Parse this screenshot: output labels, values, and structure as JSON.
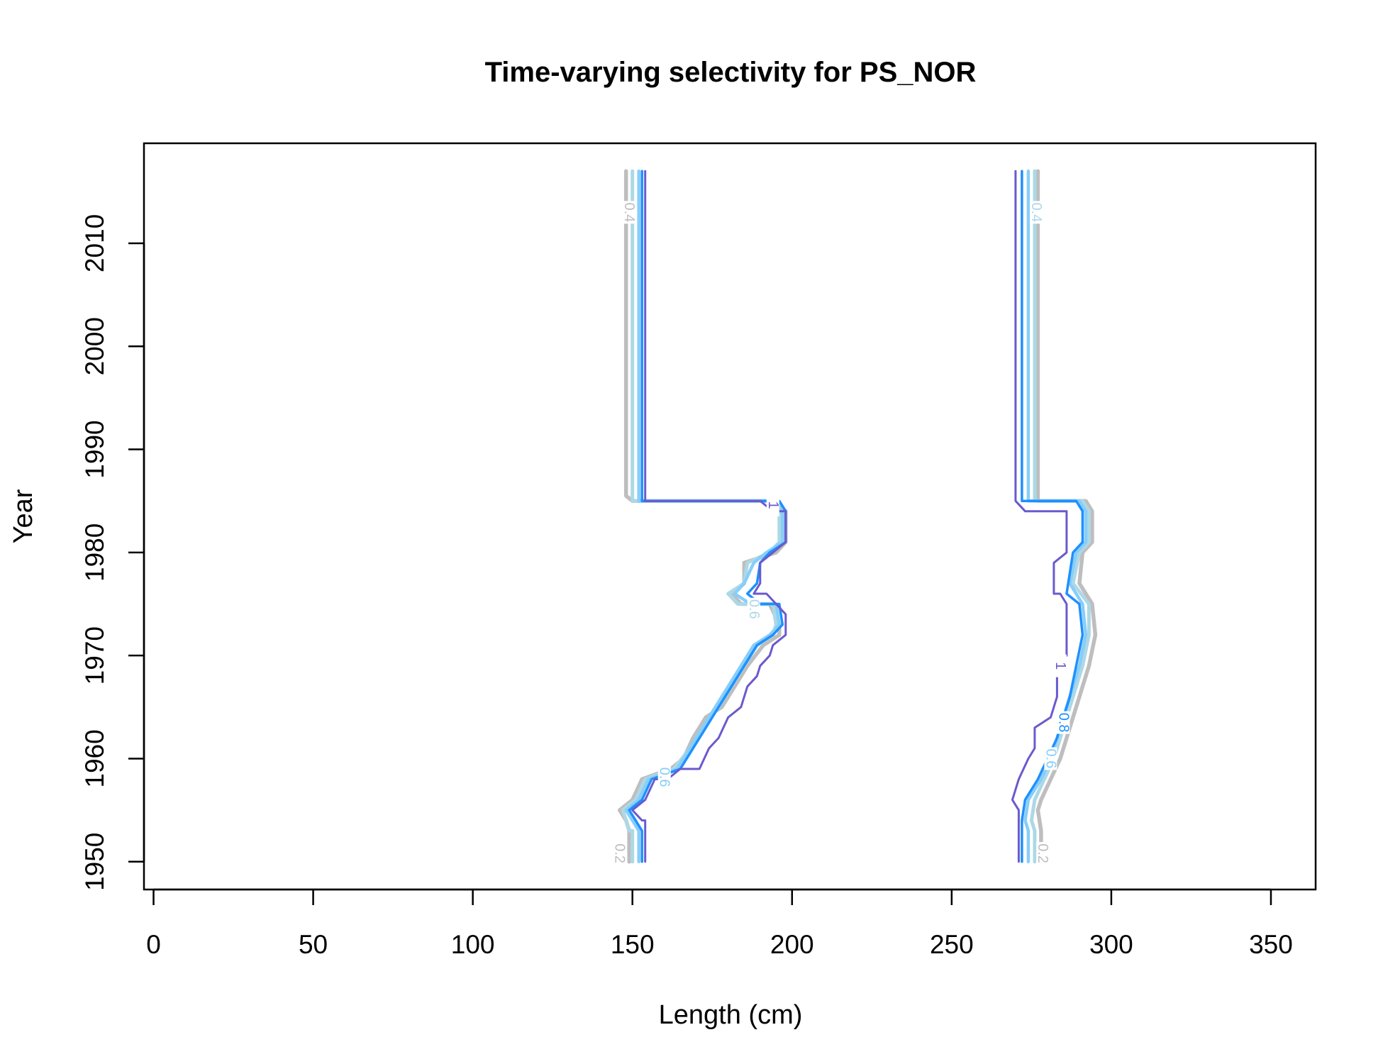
{
  "chart_data": {
    "type": "line",
    "title": "Time-varying selectivity for PS_NOR",
    "xlabel": "Length (cm)",
    "ylabel": "Year",
    "xlim": [
      -3,
      364
    ],
    "ylim": [
      1947.3,
      2019.7
    ],
    "x_ticks": [
      "0",
      "50",
      "100",
      "150",
      "200",
      "250",
      "300",
      "350"
    ],
    "x_tick_values": [
      0,
      50,
      100,
      150,
      200,
      250,
      300,
      350
    ],
    "y_ticks": [
      "1950",
      "1960",
      "1970",
      "1980",
      "1990",
      "2000",
      "2010"
    ],
    "y_tick_values": [
      1950,
      1960,
      1970,
      1980,
      1990,
      2000,
      2010
    ],
    "grid": false,
    "legend": "none",
    "series": [
      {
        "level": "0.2",
        "color": "#bebebe",
        "width": 5.5,
        "branches": [
          [
            [
              148,
              2017
            ],
            [
              148,
              1985.5
            ],
            [
              150,
              1985
            ],
            [
              194,
              1985
            ],
            [
              198,
              1984
            ],
            [
              198,
              1981
            ],
            [
              195,
              1980
            ],
            [
              185,
              1979
            ],
            [
              185,
              1977
            ],
            [
              181,
              1976
            ],
            [
              184,
              1975
            ],
            [
              193,
              1975
            ],
            [
              196,
              1973
            ],
            [
              196,
              1972
            ],
            [
              191,
              1971
            ],
            [
              186,
              1969
            ],
            [
              182,
              1967
            ],
            [
              178,
              1965
            ],
            [
              173,
              1964
            ],
            [
              169,
              1962
            ],
            [
              166,
              1960
            ],
            [
              162,
              1959
            ],
            [
              153,
              1958
            ],
            [
              150,
              1956
            ],
            [
              146,
              1955
            ],
            [
              148,
              1954
            ],
            [
              149,
              1953
            ],
            [
              149,
              1950
            ]
          ],
          [
            [
              277,
              2017
            ],
            [
              277,
              1985
            ],
            [
              292,
              1985
            ],
            [
              294,
              1984
            ],
            [
              294,
              1981
            ],
            [
              291,
              1980
            ],
            [
              290,
              1977
            ],
            [
              294,
              1975
            ],
            [
              295,
              1972
            ],
            [
              293,
              1969
            ],
            [
              290,
              1966
            ],
            [
              287,
              1963
            ],
            [
              284,
              1960
            ],
            [
              281,
              1958
            ],
            [
              278,
              1956
            ],
            [
              277,
              1955
            ],
            [
              278,
              1953
            ],
            [
              278,
              1950
            ]
          ]
        ],
        "labels": [
          {
            "text": "0.2",
            "x": 146,
            "y": 1950.8
          },
          {
            "text": "0.2",
            "x": 278.5,
            "y": 1950.8
          },
          {
            "text": "0.4",
            "x": 149,
            "y": 2013
          }
        ]
      },
      {
        "level": "0.4",
        "color": "#add8e6",
        "width": 5,
        "branches": [
          [
            [
              150,
              2017
            ],
            [
              150,
              1985
            ],
            [
              193,
              1985
            ],
            [
              196,
              1984
            ],
            [
              196,
              1981
            ],
            [
              193,
              1980
            ],
            [
              186,
              1979
            ],
            [
              185,
              1977
            ],
            [
              180,
              1976
            ],
            [
              183,
              1975
            ],
            [
              194,
              1975
            ],
            [
              195,
              1973
            ],
            [
              194,
              1972
            ],
            [
              189,
              1971
            ],
            [
              185,
              1969
            ],
            [
              181,
              1967
            ],
            [
              177,
              1965
            ],
            [
              172,
              1963
            ],
            [
              168,
              1961
            ],
            [
              163,
              1959
            ],
            [
              154,
              1958
            ],
            [
              151,
              1956
            ],
            [
              147,
              1955
            ],
            [
              149,
              1953
            ],
            [
              150,
              1953
            ],
            [
              150,
              1950
            ]
          ],
          [
            [
              276,
              2017
            ],
            [
              276,
              1985
            ],
            [
              291,
              1985
            ],
            [
              293,
              1984
            ],
            [
              293,
              1981
            ],
            [
              290,
              1980
            ],
            [
              288,
              1977
            ],
            [
              293,
              1975
            ],
            [
              293,
              1972
            ],
            [
              291,
              1969
            ],
            [
              288,
              1966
            ],
            [
              285,
              1963
            ],
            [
              282,
              1960
            ],
            [
              279,
              1958
            ],
            [
              276,
              1956
            ],
            [
              275,
              1954
            ],
            [
              276,
              1953
            ],
            [
              276,
              1950
            ]
          ]
        ],
        "labels": [
          {
            "text": "0.4",
            "x": 276.5,
            "y": 2013
          },
          {
            "text": "0.6",
            "x": 188,
            "y": 1974.5
          }
        ]
      },
      {
        "level": "0.6",
        "color": "#87cefa",
        "width": 4.5,
        "branches": [
          [
            [
              152,
              2017
            ],
            [
              152,
              1985
            ],
            [
              194,
              1985
            ],
            [
              197,
              1984
            ],
            [
              197,
              1981
            ],
            [
              192,
              1980
            ],
            [
              188,
              1979
            ],
            [
              185,
              1977
            ],
            [
              182,
              1976
            ],
            [
              187,
              1975
            ],
            [
              195,
              1975
            ],
            [
              196,
              1973
            ],
            [
              193,
              1972
            ],
            [
              188,
              1971
            ],
            [
              184,
              1969
            ],
            [
              180,
              1967
            ],
            [
              176,
              1965
            ],
            [
              172,
              1963
            ],
            [
              168,
              1961
            ],
            [
              164,
              1959
            ],
            [
              155,
              1958
            ],
            [
              152,
              1956
            ],
            [
              148,
              1955
            ],
            [
              150,
              1954
            ],
            [
              152,
              1953
            ],
            [
              152,
              1950
            ]
          ],
          [
            [
              274,
              2017
            ],
            [
              274,
              1985
            ],
            [
              290,
              1985
            ],
            [
              292,
              1984
            ],
            [
              292,
              1981
            ],
            [
              289,
              1980
            ],
            [
              287,
              1977
            ],
            [
              291,
              1975
            ],
            [
              292,
              1972
            ],
            [
              290,
              1969
            ],
            [
              287,
              1966
            ],
            [
              284,
              1963
            ],
            [
              281,
              1960
            ],
            [
              278,
              1958
            ],
            [
              274,
              1956
            ],
            [
              273,
              1954
            ],
            [
              274,
              1953
            ],
            [
              274,
              1950
            ]
          ]
        ],
        "labels": [
          {
            "text": "0.6",
            "x": 160,
            "y": 1958.2
          },
          {
            "text": "0.6",
            "x": 281,
            "y": 1960
          }
        ]
      },
      {
        "level": "0.8",
        "color": "#1e90ff",
        "width": 3.5,
        "branches": [
          [
            [
              153,
              2017
            ],
            [
              153,
              1985
            ],
            [
              196,
              1985
            ],
            [
              198,
              1984
            ],
            [
              198,
              1981
            ],
            [
              193,
              1980
            ],
            [
              190,
              1979
            ],
            [
              189,
              1977
            ],
            [
              186,
              1976
            ],
            [
              190,
              1975
            ],
            [
              196,
              1975
            ],
            [
              197,
              1973
            ],
            [
              194,
              1972
            ],
            [
              189,
              1971
            ],
            [
              185,
              1969
            ],
            [
              181,
              1967
            ],
            [
              177,
              1965
            ],
            [
              173,
              1963
            ],
            [
              169,
              1961
            ],
            [
              165,
              1959
            ],
            [
              156,
              1958
            ],
            [
              153,
              1956
            ],
            [
              149,
              1955
            ],
            [
              151,
              1954
            ],
            [
              153,
              1953
            ],
            [
              153,
              1950
            ]
          ],
          [
            [
              272,
              2017
            ],
            [
              272,
              1985
            ],
            [
              289,
              1985
            ],
            [
              291,
              1984
            ],
            [
              291,
              1981
            ],
            [
              288,
              1980
            ],
            [
              286,
              1976
            ],
            [
              290,
              1975
            ],
            [
              291,
              1972
            ],
            [
              289,
              1969
            ],
            [
              287,
              1966
            ],
            [
              285,
              1964
            ],
            [
              283,
              1962
            ],
            [
              280,
              1960
            ],
            [
              277,
              1958
            ],
            [
              273,
              1956
            ],
            [
              272,
              1954
            ],
            [
              272,
              1950
            ]
          ]
        ],
        "labels": [
          {
            "text": "0.8",
            "x": 285,
            "y": 1963.5
          }
        ]
      },
      {
        "level": "1",
        "color": "#6a5acd",
        "width": 3,
        "branches": [
          [
            [
              154,
              2017
            ],
            [
              154,
              1985
            ],
            [
              190,
              1985
            ],
            [
              194,
              1984
            ],
            [
              198,
              1984
            ],
            [
              198,
              1981
            ],
            [
              194,
              1980
            ],
            [
              190,
              1979
            ],
            [
              190,
              1977
            ],
            [
              188,
              1976
            ],
            [
              192,
              1976
            ],
            [
              198,
              1974
            ],
            [
              198,
              1972
            ],
            [
              194,
              1971
            ],
            [
              193,
              1970
            ],
            [
              190,
              1969
            ],
            [
              189,
              1968
            ],
            [
              186,
              1967
            ],
            [
              184,
              1965
            ],
            [
              180,
              1964
            ],
            [
              177,
              1962
            ],
            [
              174,
              1961
            ],
            [
              171,
              1959
            ],
            [
              165,
              1959
            ],
            [
              161,
              1958
            ],
            [
              157,
              1958
            ],
            [
              154,
              1956
            ],
            [
              150,
              1955
            ],
            [
              153,
              1954
            ],
            [
              154,
              1954
            ],
            [
              154,
              1950
            ]
          ],
          [
            [
              270,
              2017
            ],
            [
              270,
              1985
            ],
            [
              273,
              1984
            ],
            [
              286,
              1984
            ],
            [
              286,
              1980
            ],
            [
              282,
              1979
            ],
            [
              282,
              1976
            ],
            [
              284,
              1976
            ],
            [
              286,
              1975
            ],
            [
              286,
              1970
            ]
          ],
          [
            [
              283,
              1968
            ],
            [
              283,
              1966
            ],
            [
              281,
              1964
            ],
            [
              276,
              1963
            ],
            [
              276,
              1961
            ],
            [
              274,
              1960
            ],
            [
              271,
              1958
            ],
            [
              269,
              1956
            ],
            [
              271,
              1955
            ],
            [
              271,
              1950
            ]
          ]
        ],
        "labels": [
          {
            "text": "1",
            "x": 194,
            "y": 1984.6
          },
          {
            "text": "1",
            "x": 284,
            "y": 1969
          }
        ]
      }
    ]
  }
}
